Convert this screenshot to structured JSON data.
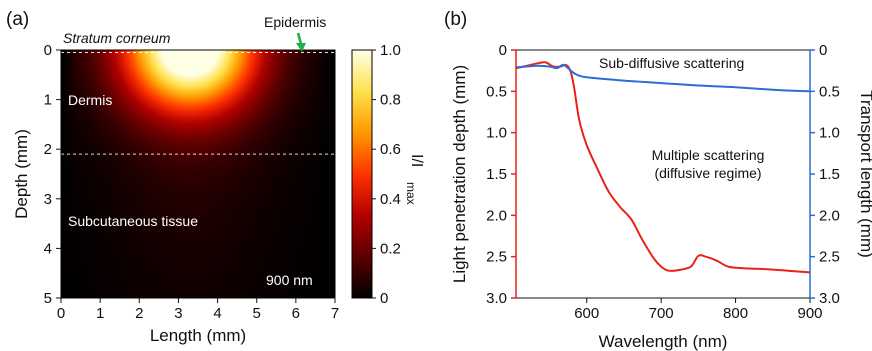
{
  "chart_data": [
    {
      "type": "heatmap",
      "panel_label": "(a)",
      "xlabel": "Length (mm)",
      "ylabel": "Depth (mm)",
      "xlim": [
        0,
        7
      ],
      "ylim": [
        0,
        5
      ],
      "x_ticks": [
        "0",
        "1",
        "2",
        "3",
        "4",
        "5",
        "6",
        "7"
      ],
      "y_ticks": [
        "0",
        "1",
        "2",
        "3",
        "4",
        "5"
      ],
      "colorbar": {
        "label_main": "I/I",
        "label_sub": "max",
        "range": [
          0,
          1.0
        ],
        "ticks": [
          "0",
          "0.2",
          "0.4",
          "0.6",
          "0.8",
          "1.0"
        ],
        "colors": [
          "#000000",
          "#5a0000",
          "#b30000",
          "#ff3300",
          "#ff9900",
          "#ffe24d",
          "#ffffe6"
        ]
      },
      "intensity_peak": {
        "x": 3.3,
        "depth": 0.0
      },
      "layer_boundaries_depth": [
        0.05,
        2.1
      ],
      "annotations": {
        "stratum": "Stratum corneum",
        "epidermis": "Epidermis",
        "dermis": "Dermis",
        "subcutaneous": "Subcutaneous tissue",
        "wavelength": "900 nm"
      },
      "arrow_color": "#1fae4a"
    },
    {
      "type": "line",
      "panel_label": "(b)",
      "xlabel": "Wavelength (nm)",
      "ylabel_left": "Light penetration depth (mm)",
      "ylabel_right": "Transport length (mm)",
      "xlim": [
        505,
        900
      ],
      "ylim": [
        3.0,
        0
      ],
      "x_ticks": [
        "600",
        "700",
        "800",
        "900"
      ],
      "y_ticks_left": [
        "0",
        "0.5",
        "1.0",
        "1.5",
        "2.0",
        "2.5",
        "3.0"
      ],
      "y_ticks_right": [
        "0",
        "0.5",
        "1.0",
        "1.5",
        "2.0",
        "2.5",
        "3.0"
      ],
      "left_axis_color": "#e8231a",
      "right_axis_color": "#2b6fd4",
      "series": [
        {
          "color": "#e8231a",
          "axis": "left",
          "x": [
            505,
            515,
            525,
            535,
            545,
            555,
            565,
            572,
            578,
            583,
            590,
            600,
            615,
            630,
            645,
            660,
            675,
            690,
            700,
            710,
            725,
            740,
            750,
            760,
            775,
            790,
            810,
            840,
            870,
            900
          ],
          "y": [
            0.22,
            0.2,
            0.18,
            0.16,
            0.15,
            0.2,
            0.2,
            0.18,
            0.25,
            0.45,
            0.85,
            1.15,
            1.45,
            1.72,
            1.9,
            2.05,
            2.3,
            2.52,
            2.62,
            2.67,
            2.66,
            2.62,
            2.49,
            2.5,
            2.55,
            2.62,
            2.64,
            2.65,
            2.67,
            2.69
          ]
        },
        {
          "color": "#2b6fd4",
          "axis": "right",
          "x": [
            505,
            520,
            535,
            550,
            560,
            568,
            575,
            585,
            600,
            650,
            700,
            750,
            800,
            850,
            900
          ],
          "y": [
            0.21,
            0.2,
            0.19,
            0.2,
            0.22,
            0.18,
            0.22,
            0.29,
            0.33,
            0.37,
            0.4,
            0.43,
            0.45,
            0.48,
            0.5
          ]
        }
      ],
      "annotations": {
        "sub": "Sub-diffusive scattering",
        "multi_line1": "Multiple scattering",
        "multi_line2": "(diffusive regime)"
      }
    }
  ]
}
